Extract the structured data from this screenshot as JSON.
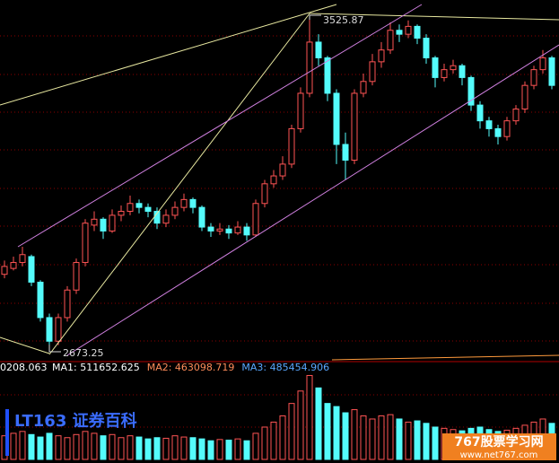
{
  "chart_data": {
    "type": "candlestick",
    "high_label": "3525.87",
    "low_label": "2673.25",
    "ylim": [
      2655,
      3567
    ],
    "colors": {
      "up": "#ff5454",
      "down": "#54fcfc"
    },
    "candles": [
      [
        2870,
        2890,
        2905,
        2860
      ],
      [
        2885,
        2900,
        2915,
        2880
      ],
      [
        2900,
        2920,
        2940,
        2890
      ],
      [
        2915,
        2850,
        2920,
        2840
      ],
      [
        2850,
        2760,
        2855,
        2750
      ],
      [
        2760,
        2700,
        2770,
        2673.25
      ],
      [
        2700,
        2760,
        2770,
        2690
      ],
      [
        2760,
        2830,
        2840,
        2750
      ],
      [
        2830,
        2900,
        2910,
        2820
      ],
      [
        2900,
        3000,
        3010,
        2890
      ],
      [
        2995,
        3010,
        3030,
        2980
      ],
      [
        3010,
        2980,
        3015,
        2960
      ],
      [
        2980,
        3020,
        3035,
        2975
      ],
      [
        3020,
        3030,
        3045,
        3005
      ],
      [
        3030,
        3050,
        3070,
        3020
      ],
      [
        3050,
        3040,
        3060,
        3025
      ],
      [
        3040,
        3030,
        3050,
        3015
      ],
      [
        3030,
        3000,
        3040,
        2985
      ],
      [
        3000,
        3020,
        3035,
        2990
      ],
      [
        3020,
        3040,
        3055,
        3010
      ],
      [
        3040,
        3060,
        3075,
        3030
      ],
      [
        3060,
        3040,
        3065,
        3025
      ],
      [
        3040,
        2990,
        3045,
        2980
      ],
      [
        2990,
        2980,
        3000,
        2965
      ],
      [
        2980,
        2985,
        3000,
        2970
      ],
      [
        2985,
        2975,
        2995,
        2960
      ],
      [
        2975,
        2990,
        3005,
        2970
      ],
      [
        2990,
        2970,
        3000,
        2955
      ],
      [
        2970,
        3050,
        3060,
        2965
      ],
      [
        3050,
        3100,
        3110,
        3040
      ],
      [
        3100,
        3120,
        3135,
        3090
      ],
      [
        3120,
        3150,
        3170,
        3110
      ],
      [
        3150,
        3240,
        3250,
        3140
      ],
      [
        3240,
        3330,
        3345,
        3230
      ],
      [
        3330,
        3460,
        3525.87,
        3320
      ],
      [
        3460,
        3420,
        3480,
        3400
      ],
      [
        3420,
        3330,
        3425,
        3310
      ],
      [
        3330,
        3200,
        3340,
        3150
      ],
      [
        3200,
        3160,
        3230,
        3110
      ],
      [
        3160,
        3330,
        3340,
        3150
      ],
      [
        3330,
        3360,
        3380,
        3320
      ],
      [
        3360,
        3410,
        3430,
        3350
      ],
      [
        3410,
        3440,
        3460,
        3395
      ],
      [
        3440,
        3490,
        3510,
        3430
      ],
      [
        3490,
        3480,
        3505,
        3460
      ],
      [
        3480,
        3500,
        3515,
        3470
      ],
      [
        3500,
        3470,
        3505,
        3455
      ],
      [
        3470,
        3420,
        3480,
        3405
      ],
      [
        3420,
        3370,
        3425,
        3345
      ],
      [
        3370,
        3390,
        3405,
        3360
      ],
      [
        3390,
        3400,
        3415,
        3380
      ],
      [
        3400,
        3370,
        3405,
        3350
      ],
      [
        3370,
        3300,
        3375,
        3285
      ],
      [
        3300,
        3260,
        3310,
        3240
      ],
      [
        3260,
        3240,
        3270,
        3220
      ],
      [
        3240,
        3220,
        3250,
        3200
      ],
      [
        3220,
        3260,
        3270,
        3210
      ],
      [
        3260,
        3290,
        3300,
        3250
      ],
      [
        3290,
        3350,
        3360,
        3280
      ],
      [
        3350,
        3390,
        3400,
        3340
      ],
      [
        3390,
        3420,
        3440,
        3380
      ],
      [
        3420,
        3350,
        3425,
        3340
      ]
    ],
    "volume_ylim": [
      0,
      1400000
    ],
    "volumes": [
      380000,
      420000,
      450000,
      400000,
      360000,
      420000,
      380000,
      350000,
      400000,
      450000,
      420000,
      380000,
      400000,
      350000,
      380000,
      360000,
      330000,
      350000,
      340000,
      380000,
      360000,
      350000,
      330000,
      300000,
      320000,
      310000,
      330000,
      300000,
      420000,
      520000,
      600000,
      700000,
      900000,
      1100000,
      1350000,
      1150000,
      900000,
      850000,
      750000,
      800000,
      700000,
      650000,
      700000,
      720000,
      650000,
      600000,
      620000,
      580000,
      520000,
      500000,
      480000,
      460000,
      500000,
      520000,
      480000,
      450000,
      470000,
      500000,
      550000,
      600000,
      650000,
      580000
    ],
    "volume_label": "0208.063",
    "ma_labels": [
      {
        "text": "MA1: 511652.625",
        "color": "#ffffff"
      },
      {
        "text": "MA2: 463098.719",
        "color": "#ff8c5a"
      },
      {
        "text": "MA3: 485454.906",
        "color": "#5aa8ff"
      }
    ],
    "watermark_left": "LT163 证券百科",
    "watermark_site": "767股票学习网",
    "watermark_url": "www.net767.com"
  }
}
